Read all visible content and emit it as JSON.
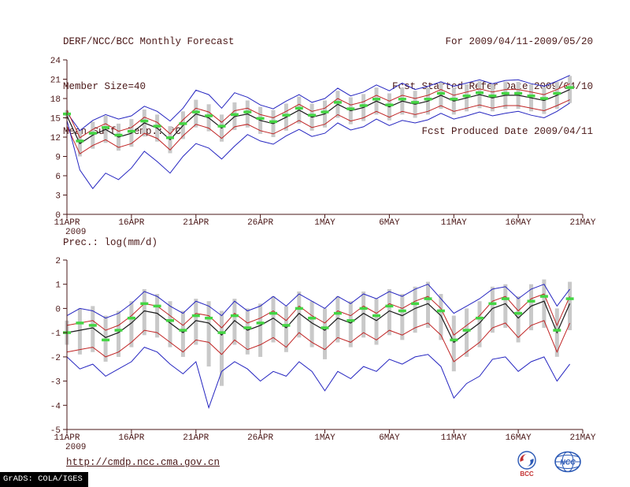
{
  "header": {
    "title": "DERF/NCC/BCC Monthly Forecast",
    "member_size": "Member Size=40",
    "variable_label": "Mean Surf. Temp.: °C",
    "for_period": "For 2009/04/11-2009/05/20",
    "refer_date": "Fcst Started Refer Date 2009/04/10",
    "produced_date": "Fcst Produced Date 2009/04/11"
  },
  "labels": {
    "precip_panel": "Prec.: log(mm/d)"
  },
  "footer": {
    "url": "http://cmdp.ncc.cma.gov.cn",
    "grads_credit": "GrADS: COLA/IGES",
    "bcc_logo_label": "BCC",
    "ncc_logo_label": "NCC"
  },
  "colors": {
    "text": "#4a1717",
    "max_min_line": "#2424c0",
    "quartile_line": "#c02424",
    "mean_line": "#1a1a1a",
    "median_dash": "#44d544",
    "spread_bar": "#c9c9c9",
    "logo_blue": "#2b59b5",
    "logo_red": "#c43030"
  },
  "chart_data": [
    {
      "type": "line",
      "title": "Mean Surf. Temp.: °C",
      "xlabel": "",
      "ylabel": "",
      "ylim": [
        0,
        24
      ],
      "yticks": [
        0,
        3,
        6,
        9,
        12,
        15,
        18,
        21,
        24
      ],
      "grid": false,
      "legend": "none",
      "x_axis": {
        "total_days": 40,
        "tick_days": [
          0,
          5,
          10,
          15,
          20,
          25,
          30,
          35,
          40
        ],
        "tick_labels": [
          "11APR",
          "16APR",
          "21APR",
          "26APR",
          "1MAY",
          "6MAY",
          "11MAY",
          "16MAY",
          "21MAY"
        ],
        "year_label": "2009"
      },
      "series": [
        {
          "name": "ensemble-max",
          "color": "#2424c0",
          "width": 1,
          "values": [
            15.8,
            13.0,
            14.6,
            15.5,
            14.8,
            15.3,
            16.8,
            16.0,
            14.5,
            16.5,
            19.3,
            18.6,
            16.5,
            18.9,
            18.2,
            17.0,
            16.4,
            17.6,
            18.6,
            17.4,
            18.0,
            19.6,
            18.4,
            19.0,
            20.1,
            19.2,
            20.4,
            19.4,
            19.9,
            20.6,
            19.9,
            20.4,
            20.9,
            20.3,
            20.8,
            20.9,
            20.3,
            19.9,
            20.7,
            21.6
          ]
        },
        {
          "name": "upper-quartile",
          "color": "#c02424",
          "width": 1,
          "values": [
            16.2,
            11.9,
            13.2,
            14.1,
            12.9,
            13.5,
            15.1,
            14.3,
            12.5,
            14.7,
            16.5,
            15.9,
            14.3,
            16.1,
            16.5,
            15.5,
            15.0,
            16.0,
            17.1,
            16.0,
            16.5,
            18.0,
            17.0,
            17.5,
            18.5,
            17.6,
            18.5,
            18.0,
            18.5,
            19.4,
            18.5,
            19.0,
            19.5,
            19.0,
            19.4,
            19.4,
            19.0,
            18.6,
            19.4,
            20.3
          ]
        },
        {
          "name": "ensemble-mean",
          "color": "#1a1a1a",
          "width": 1.2,
          "values": [
            15.3,
            11.0,
            12.3,
            13.2,
            12.0,
            12.6,
            14.2,
            13.4,
            11.6,
            13.8,
            15.6,
            15.0,
            13.4,
            15.2,
            15.6,
            14.6,
            14.1,
            15.1,
            16.2,
            15.1,
            15.6,
            17.1,
            16.1,
            16.6,
            17.6,
            16.7,
            17.6,
            17.1,
            17.6,
            18.5,
            17.6,
            18.1,
            18.6,
            18.1,
            18.5,
            18.5,
            18.1,
            17.7,
            18.5,
            19.4
          ]
        },
        {
          "name": "lower-quartile",
          "color": "#c02424",
          "width": 1,
          "values": [
            13.7,
            9.4,
            10.7,
            11.6,
            10.4,
            11.0,
            12.6,
            11.8,
            10.0,
            12.2,
            14.0,
            13.4,
            11.8,
            13.6,
            14.0,
            13.0,
            12.5,
            13.5,
            14.6,
            13.5,
            14.0,
            15.5,
            14.5,
            15.0,
            16.0,
            15.1,
            16.0,
            15.5,
            16.0,
            16.9,
            16.0,
            16.5,
            17.0,
            16.5,
            16.9,
            16.9,
            16.5,
            16.1,
            16.9,
            17.8
          ]
        },
        {
          "name": "ensemble-min",
          "color": "#2424c0",
          "width": 1,
          "values": [
            14.6,
            6.9,
            4.0,
            6.4,
            5.4,
            7.2,
            9.8,
            8.2,
            6.4,
            9.0,
            11.0,
            10.3,
            8.6,
            10.6,
            12.4,
            11.4,
            10.9,
            12.2,
            13.2,
            12.1,
            12.6,
            14.2,
            13.1,
            13.6,
            14.8,
            13.8,
            14.6,
            14.2,
            14.7,
            15.7,
            14.8,
            15.3,
            15.9,
            15.3,
            15.7,
            16.0,
            15.4,
            15.0,
            16.0,
            17.3
          ]
        },
        {
          "name": "ensemble-median",
          "style": "dashes",
          "color": "#44d544",
          "values": [
            15.6,
            11.4,
            12.6,
            13.5,
            12.3,
            12.9,
            14.5,
            13.7,
            11.9,
            14.1,
            15.9,
            15.3,
            13.7,
            15.5,
            15.9,
            14.9,
            14.4,
            15.4,
            16.5,
            15.4,
            15.9,
            17.4,
            16.4,
            16.9,
            17.9,
            17.0,
            17.9,
            17.4,
            17.9,
            18.8,
            17.9,
            18.4,
            18.9,
            18.4,
            18.8,
            18.8,
            18.4,
            18.0,
            18.8,
            19.7
          ]
        }
      ],
      "spread_bars": {
        "color": "#c9c9c9",
        "ranges": [
          [
            14.8,
            16.2
          ],
          [
            9.0,
            13.0
          ],
          [
            10.2,
            14.4
          ],
          [
            11.1,
            15.3
          ],
          [
            9.9,
            14.1
          ],
          [
            10.5,
            14.8
          ],
          [
            12.1,
            16.3
          ],
          [
            11.3,
            15.5
          ],
          [
            9.5,
            13.7
          ],
          [
            11.7,
            16.0
          ],
          [
            13.5,
            17.8
          ],
          [
            12.9,
            17.1
          ],
          [
            11.3,
            15.5
          ],
          [
            13.1,
            17.4
          ],
          [
            13.5,
            17.7
          ],
          [
            12.5,
            16.7
          ],
          [
            12.0,
            16.2
          ],
          [
            13.0,
            17.2
          ],
          [
            14.1,
            18.3
          ],
          [
            13.0,
            17.2
          ],
          [
            13.5,
            17.7
          ],
          [
            15.0,
            19.2
          ],
          [
            14.0,
            18.2
          ],
          [
            14.5,
            18.7
          ],
          [
            15.5,
            19.7
          ],
          [
            14.6,
            18.8
          ],
          [
            15.5,
            19.7
          ],
          [
            15.0,
            19.2
          ],
          [
            15.5,
            19.7
          ],
          [
            16.4,
            20.6
          ],
          [
            15.5,
            19.7
          ],
          [
            16.0,
            20.2
          ],
          [
            16.5,
            20.7
          ],
          [
            16.0,
            20.2
          ],
          [
            16.4,
            20.6
          ],
          [
            16.4,
            20.6
          ],
          [
            16.0,
            20.2
          ],
          [
            15.6,
            19.8
          ],
          [
            16.4,
            20.6
          ],
          [
            17.3,
            21.5
          ]
        ]
      }
    },
    {
      "type": "line",
      "title": "Prec.: log(mm/d)",
      "xlabel": "",
      "ylabel": "",
      "ylim": [
        -5,
        2
      ],
      "yticks": [
        -5,
        -4,
        -3,
        -2,
        -1,
        0,
        1,
        2
      ],
      "grid": false,
      "legend": "none",
      "x_axis": {
        "total_days": 40,
        "tick_days": [
          0,
          5,
          10,
          15,
          20,
          25,
          30,
          35,
          40
        ],
        "tick_labels": [
          "11APR",
          "16APR",
          "21APR",
          "26APR",
          "1MAY",
          "6MAY",
          "11MAY",
          "16MAY",
          "21MAY"
        ],
        "year_label": "2009"
      },
      "series": [
        {
          "name": "ensemble-max",
          "color": "#2424c0",
          "width": 1,
          "values": [
            -0.3,
            0.0,
            -0.1,
            -0.4,
            -0.2,
            0.2,
            0.7,
            0.5,
            0.1,
            -0.2,
            0.3,
            0.1,
            -0.3,
            0.3,
            -0.1,
            0.1,
            0.5,
            0.1,
            0.6,
            0.3,
            0.0,
            0.5,
            0.2,
            0.6,
            0.4,
            0.7,
            0.5,
            0.8,
            1.0,
            0.4,
            -0.2,
            0.1,
            0.4,
            0.8,
            0.9,
            0.4,
            0.8,
            1.0,
            0.1,
            0.8
          ]
        },
        {
          "name": "upper-quartile",
          "color": "#c02424",
          "width": 1,
          "values": [
            -0.7,
            -0.6,
            -0.5,
            -0.9,
            -0.7,
            -0.3,
            0.2,
            0.1,
            -0.3,
            -0.7,
            -0.2,
            -0.3,
            -0.8,
            -0.2,
            -0.6,
            -0.4,
            -0.1,
            -0.5,
            0.1,
            -0.3,
            -0.6,
            -0.1,
            -0.3,
            0.1,
            -0.2,
            0.2,
            0.0,
            0.3,
            0.5,
            0.0,
            -1.1,
            -0.7,
            -0.3,
            0.3,
            0.5,
            -0.1,
            0.4,
            0.6,
            -0.7,
            0.5
          ]
        },
        {
          "name": "ensemble-mean",
          "color": "#1a1a1a",
          "width": 1.2,
          "values": [
            -1.0,
            -0.9,
            -0.8,
            -1.2,
            -1.0,
            -0.6,
            -0.1,
            -0.2,
            -0.6,
            -1.0,
            -0.5,
            -0.6,
            -1.1,
            -0.5,
            -0.9,
            -0.7,
            -0.4,
            -0.8,
            -0.2,
            -0.6,
            -0.9,
            -0.4,
            -0.6,
            -0.2,
            -0.5,
            -0.1,
            -0.3,
            0.0,
            0.2,
            -0.3,
            -1.4,
            -1.0,
            -0.6,
            0.0,
            0.2,
            -0.4,
            0.1,
            0.3,
            -1.0,
            0.2
          ]
        },
        {
          "name": "lower-quartile",
          "color": "#c02424",
          "width": 1,
          "values": [
            -1.8,
            -1.7,
            -1.6,
            -2.0,
            -1.8,
            -1.4,
            -0.9,
            -1.0,
            -1.4,
            -1.8,
            -1.3,
            -1.4,
            -1.9,
            -1.3,
            -1.7,
            -1.5,
            -1.2,
            -1.6,
            -1.0,
            -1.4,
            -1.7,
            -1.2,
            -1.4,
            -1.0,
            -1.3,
            -0.9,
            -1.1,
            -0.8,
            -0.6,
            -1.1,
            -2.2,
            -1.8,
            -1.4,
            -0.8,
            -0.6,
            -1.2,
            -0.7,
            -0.5,
            -1.8,
            -0.6
          ]
        },
        {
          "name": "ensemble-min",
          "color": "#2424c0",
          "width": 1,
          "values": [
            -2.0,
            -2.5,
            -2.3,
            -2.8,
            -2.5,
            -2.2,
            -1.6,
            -1.8,
            -2.3,
            -2.7,
            -2.2,
            -4.1,
            -2.6,
            -2.2,
            -2.5,
            -3.0,
            -2.6,
            -2.8,
            -2.2,
            -2.6,
            -3.4,
            -2.6,
            -2.9,
            -2.4,
            -2.6,
            -2.1,
            -2.3,
            -2.0,
            -1.9,
            -2.4,
            -3.7,
            -3.1,
            -2.8,
            -2.1,
            -2.0,
            -2.6,
            -2.2,
            -2.0,
            -3.0,
            -2.3
          ]
        },
        {
          "name": "ensemble-median",
          "style": "dashes",
          "color": "#44d544",
          "values": [
            -1.0,
            -0.6,
            -0.7,
            -1.3,
            -0.9,
            -0.4,
            0.2,
            0.1,
            -0.5,
            -0.9,
            -0.3,
            -0.4,
            -1.0,
            -0.3,
            -0.8,
            -0.6,
            -0.2,
            -0.7,
            0.0,
            -0.4,
            -0.8,
            -0.2,
            -0.5,
            0.0,
            -0.3,
            0.1,
            -0.1,
            0.2,
            0.4,
            -0.1,
            -1.3,
            -0.9,
            -0.4,
            0.2,
            0.4,
            -0.2,
            0.3,
            0.5,
            -0.9,
            0.4
          ]
        }
      ],
      "spread_bars": {
        "color": "#c9c9c9",
        "ranges": [
          [
            -1.5,
            -0.5
          ],
          [
            -1.9,
            0.0
          ],
          [
            -1.8,
            0.1
          ],
          [
            -2.2,
            -0.3
          ],
          [
            -2.0,
            -0.1
          ],
          [
            -1.6,
            0.3
          ],
          [
            -1.1,
            0.8
          ],
          [
            -1.2,
            0.6
          ],
          [
            -1.6,
            0.3
          ],
          [
            -2.0,
            -0.1
          ],
          [
            -1.5,
            0.4
          ],
          [
            -2.4,
            0.3
          ],
          [
            -3.2,
            -0.1
          ],
          [
            -1.5,
            0.4
          ],
          [
            -1.9,
            0.0
          ],
          [
            -2.0,
            0.2
          ],
          [
            -1.4,
            0.5
          ],
          [
            -1.8,
            0.1
          ],
          [
            -1.2,
            0.7
          ],
          [
            -1.6,
            0.3
          ],
          [
            -2.1,
            0.0
          ],
          [
            -1.4,
            0.5
          ],
          [
            -1.6,
            0.3
          ],
          [
            -1.2,
            0.7
          ],
          [
            -1.5,
            0.4
          ],
          [
            -1.1,
            0.8
          ],
          [
            -1.3,
            0.6
          ],
          [
            -1.0,
            0.9
          ],
          [
            -0.8,
            1.1
          ],
          [
            -1.3,
            0.6
          ],
          [
            -2.6,
            -0.3
          ],
          [
            -2.0,
            0.0
          ],
          [
            -1.6,
            0.3
          ],
          [
            -1.0,
            0.9
          ],
          [
            -0.8,
            1.0
          ],
          [
            -1.4,
            0.5
          ],
          [
            -0.9,
            1.0
          ],
          [
            -0.8,
            1.2
          ],
          [
            -2.0,
            0.0
          ],
          [
            -0.9,
            1.1
          ]
        ]
      }
    }
  ]
}
